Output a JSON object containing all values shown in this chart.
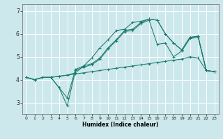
{
  "title": "",
  "xlabel": "Humidex (Indice chaleur)",
  "xlim": [
    -0.5,
    23.5
  ],
  "ylim": [
    2.5,
    7.3
  ],
  "yticks": [
    3,
    4,
    5,
    6,
    7
  ],
  "xticks": [
    0,
    1,
    2,
    3,
    4,
    5,
    6,
    7,
    8,
    9,
    10,
    11,
    12,
    13,
    14,
    15,
    16,
    17,
    18,
    19,
    20,
    21,
    22,
    23
  ],
  "bg_color": "#cce8ec",
  "grid_color": "#ffffff",
  "line_color": "#1a7a6e",
  "series": [
    {
      "x": [
        0,
        1,
        2,
        3,
        4,
        5,
        6,
        7,
        8,
        9,
        10,
        11,
        12,
        13,
        14,
        15,
        16,
        17,
        18,
        19,
        20,
        21,
        22,
        23
      ],
      "y": [
        4.1,
        4.0,
        4.1,
        4.1,
        4.15,
        4.2,
        4.25,
        4.3,
        4.35,
        4.4,
        4.45,
        4.5,
        4.55,
        4.6,
        4.65,
        4.7,
        4.75,
        4.8,
        4.85,
        4.9,
        5.0,
        4.95,
        4.4,
        4.35
      ]
    },
    {
      "x": [
        0,
        1,
        2,
        3,
        4,
        5,
        6,
        7,
        8,
        9,
        10,
        11,
        12,
        13,
        14,
        15,
        16,
        17,
        18,
        19,
        20,
        21,
        22,
        23
      ],
      "y": [
        4.1,
        4.0,
        4.1,
        4.1,
        4.15,
        4.2,
        4.3,
        4.6,
        4.95,
        5.4,
        5.75,
        6.15,
        6.2,
        6.5,
        6.55,
        6.65,
        6.6,
        6.0,
        5.6,
        5.3,
        5.85,
        5.9,
        4.4,
        4.35
      ]
    },
    {
      "x": [
        0,
        1,
        2,
        3,
        4,
        5,
        6,
        7,
        8,
        9,
        10,
        11,
        12,
        13,
        14,
        15,
        16,
        17,
        18,
        19,
        20,
        21,
        22,
        23
      ],
      "y": [
        4.1,
        4.0,
        4.1,
        4.1,
        3.65,
        3.2,
        4.45,
        4.6,
        4.7,
        4.95,
        5.4,
        5.75,
        6.15,
        6.2,
        6.5,
        6.65,
        6.6,
        6.0,
        5.6,
        5.3,
        5.85,
        5.9,
        4.4,
        4.35
      ]
    },
    {
      "x": [
        0,
        1,
        2,
        3,
        4,
        5,
        6,
        7,
        8,
        9,
        10,
        11,
        12,
        13,
        14,
        15,
        16,
        17,
        18,
        19,
        20,
        21,
        22,
        23
      ],
      "y": [
        4.1,
        4.0,
        4.1,
        4.1,
        3.65,
        2.85,
        4.4,
        4.55,
        4.65,
        4.9,
        5.35,
        5.7,
        6.1,
        6.15,
        6.45,
        6.6,
        5.55,
        5.6,
        5.0,
        5.25,
        5.8,
        5.85,
        4.4,
        4.35
      ]
    }
  ]
}
